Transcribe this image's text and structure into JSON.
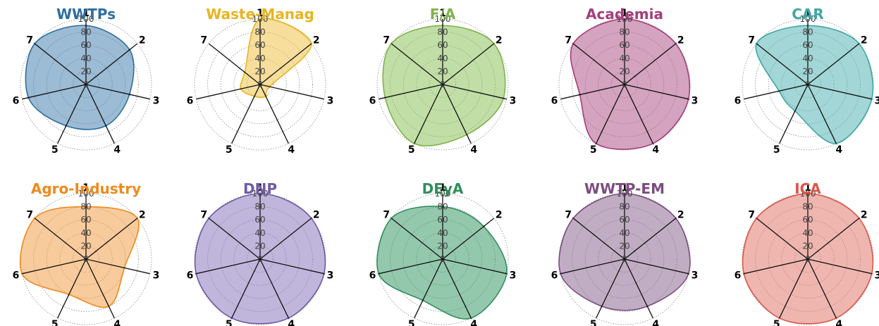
{
  "chart_data": [
    {
      "type": "radar",
      "title": "WWTPs",
      "color": "#2d6e9e",
      "fill": "#4a84b0",
      "axes": [
        "1",
        "2",
        "3",
        "4",
        "5",
        "6",
        "7"
      ],
      "rlim": [
        0,
        100
      ],
      "rticks": [
        "0",
        "20",
        "40",
        "60",
        "80",
        "100"
      ],
      "values": [
        90,
        85,
        68,
        70,
        70,
        90,
        100
      ]
    },
    {
      "type": "radar",
      "title": "Waste-Manag",
      "color": "#e8b421",
      "fill": "#f1c24a",
      "axes": [
        "1",
        "2",
        "3",
        "4",
        "5",
        "6",
        "7"
      ],
      "rlim": [
        0,
        100
      ],
      "rticks": [
        "0",
        "20",
        "40",
        "60",
        "80",
        "100"
      ],
      "values": [
        100,
        100,
        15,
        20,
        20,
        30,
        30
      ]
    },
    {
      "type": "radar",
      "title": "F/A",
      "color": "#7fb24a",
      "fill": "#8ec35c",
      "axes": [
        "1",
        "2",
        "3",
        "4",
        "5",
        "6",
        "7"
      ],
      "rlim": [
        0,
        100
      ],
      "rticks": [
        "0",
        "20",
        "40",
        "60",
        "80",
        "100"
      ],
      "values": [
        90,
        100,
        95,
        85,
        100,
        90,
        100
      ]
    },
    {
      "type": "radar",
      "title": "Academia",
      "color": "#a53d7b",
      "fill": "#b0588a",
      "axes": [
        "1",
        "2",
        "3",
        "4",
        "5",
        "6",
        "7"
      ],
      "rlim": [
        0,
        100
      ],
      "rticks": [
        "0",
        "20",
        "40",
        "60",
        "80",
        "100"
      ],
      "values": [
        100,
        100,
        100,
        100,
        100,
        70,
        100
      ]
    },
    {
      "type": "radar",
      "title": "CAR",
      "color": "#3fa6a6",
      "fill": "#58b5b5",
      "axes": [
        "1",
        "2",
        "3",
        "4",
        "5",
        "6",
        "7"
      ],
      "rlim": [
        0,
        100
      ],
      "rticks": [
        "0",
        "20",
        "40",
        "60",
        "80",
        "100"
      ],
      "values": [
        90,
        100,
        100,
        100,
        45,
        45,
        100
      ]
    },
    {
      "type": "radar",
      "title": "Agro-Industry",
      "color": "#ef8a1d",
      "fill": "#f2a04a",
      "axes": [
        "1",
        "2",
        "3",
        "4",
        "5",
        "6",
        "7"
      ],
      "rlim": [
        0,
        100
      ],
      "rticks": [
        "0",
        "20",
        "40",
        "60",
        "80",
        "100"
      ],
      "values": [
        80,
        100,
        60,
        80,
        60,
        100,
        100
      ]
    },
    {
      "type": "radar",
      "title": "DNP",
      "color": "#6f5aa6",
      "fill": "#8c7ac0",
      "axes": [
        "1",
        "2",
        "3",
        "4",
        "5",
        "6",
        "7"
      ],
      "rlim": [
        0,
        100
      ],
      "rticks": [
        "0",
        "20",
        "40",
        "60",
        "80",
        "100"
      ],
      "values": [
        100,
        100,
        100,
        100,
        100,
        100,
        100
      ]
    },
    {
      "type": "radar",
      "title": "DEyA",
      "color": "#2f8f5c",
      "fill": "#3d9a6a",
      "axes": [
        "1",
        "2",
        "3",
        "4",
        "5",
        "6",
        "7"
      ],
      "rlim": [
        0,
        100
      ],
      "rticks": [
        "0",
        "20",
        "40",
        "60",
        "80",
        "100"
      ],
      "values": [
        80,
        80,
        100,
        100,
        70,
        100,
        100
      ]
    },
    {
      "type": "radar",
      "title": "WWTP-EM",
      "color": "#7b4c80",
      "fill": "#8e6a92",
      "axes": [
        "1",
        "2",
        "3",
        "4",
        "5",
        "6",
        "7"
      ],
      "rlim": [
        0,
        100
      ],
      "rticks": [
        "0",
        "20",
        "40",
        "60",
        "80",
        "100"
      ],
      "values": [
        100,
        100,
        100,
        80,
        80,
        100,
        100
      ]
    },
    {
      "type": "radar",
      "title": "ICA",
      "color": "#d9584a",
      "fill": "#e27a6e",
      "axes": [
        "1",
        "2",
        "3",
        "4",
        "5",
        "6",
        "7"
      ],
      "rlim": [
        0,
        100
      ],
      "rticks": [
        "0",
        "20",
        "40",
        "60",
        "80",
        "100"
      ],
      "values": [
        100,
        100,
        100,
        100,
        100,
        100,
        100
      ]
    }
  ]
}
